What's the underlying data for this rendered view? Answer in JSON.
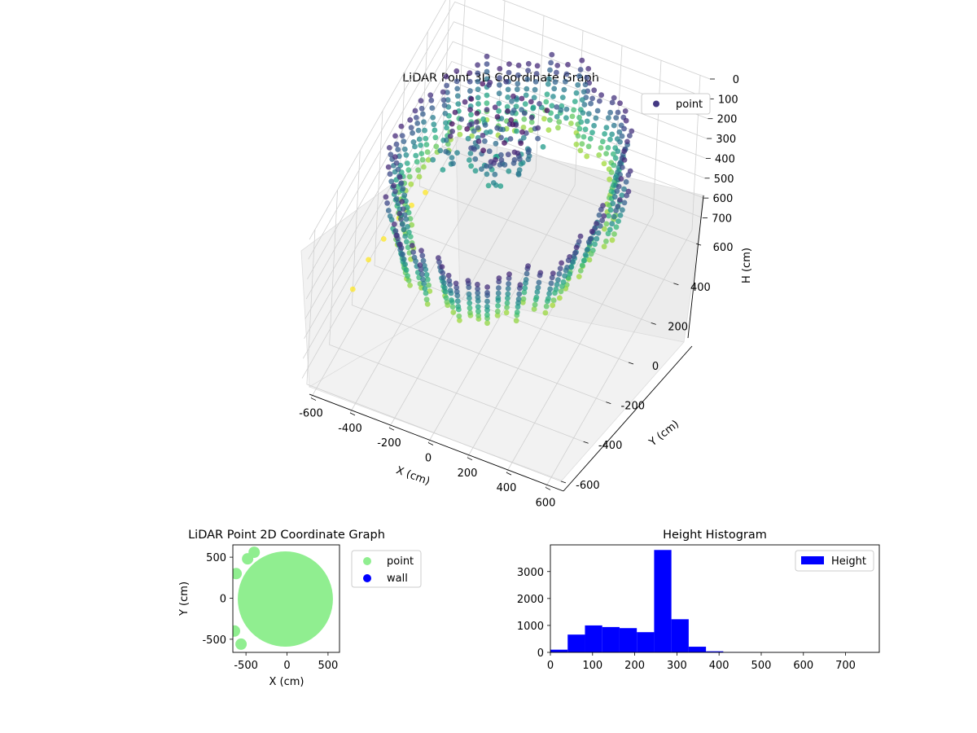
{
  "chart_data": [
    {
      "type": "scatter",
      "title": "LiDAR Point 3D Coordinate Graph",
      "projection": "3d",
      "xlabel": "X (cm)",
      "ylabel": "Y (cm)",
      "zlabel": "H (cm)",
      "xlim": [
        -650,
        650
      ],
      "ylim": [
        -650,
        650
      ],
      "zlim": [
        0,
        780
      ],
      "z_inverted": true,
      "xticks": [
        -600,
        -400,
        -200,
        0,
        200,
        400,
        600
      ],
      "yticks": [
        -600,
        -400,
        -200,
        0,
        200,
        400,
        600
      ],
      "zticks": [
        0,
        100,
        200,
        300,
        400,
        500,
        600,
        700
      ],
      "colormap": "viridis (by height)",
      "legend_position": "upper right",
      "series": [
        {
          "name": "point",
          "color": "#443983",
          "description_of_values": "ring of points around the sensor, radius approx 450-600 cm, heights mostly 60-300 cm, a few outliers to 700 cm near x=-650",
          "sample_points": [
            {
              "x": 600,
              "y": 0,
              "h": 250
            },
            {
              "x": 0,
              "y": 600,
              "h": 250
            },
            {
              "x": -450,
              "y": 300,
              "h": 150
            },
            {
              "x": -650,
              "y": -200,
              "h": 700
            },
            {
              "x": 300,
              "y": -500,
              "h": 150
            },
            {
              "x": 100,
              "y": -550,
              "h": 300
            },
            {
              "x": -100,
              "y": 200,
              "h": 30
            }
          ]
        }
      ]
    },
    {
      "type": "scatter",
      "title": "LiDAR Point 2D Coordinate Graph",
      "xlabel": "X (cm)",
      "ylabel": "Y (cm)",
      "xlim": [
        -660,
        640
      ],
      "ylim": [
        -660,
        650
      ],
      "xticks": [
        -500,
        0,
        500
      ],
      "yticks": [
        -500,
        0,
        500
      ],
      "legend_position": "outside right",
      "series": [
        {
          "name": "point",
          "color": "#90ee90",
          "description_of_values": "filled disc of radius approx 580 cm centered at origin"
        },
        {
          "name": "wall",
          "color": "#0000ff",
          "description_of_values": "no visible points"
        }
      ]
    },
    {
      "type": "bar",
      "subtype": "histogram",
      "title": "Height Histogram",
      "xlim": [
        0,
        780
      ],
      "ylim": [
        0,
        3990
      ],
      "xticks": [
        0,
        100,
        200,
        300,
        400,
        500,
        600,
        700
      ],
      "yticks": [
        0,
        1000,
        2000,
        3000
      ],
      "legend_position": "upper right",
      "series": [
        {
          "name": "Height",
          "color": "#0000ff",
          "bin_edges": [
            0,
            41,
            82,
            123,
            164,
            205,
            246,
            287,
            328,
            369,
            410,
            451,
            492,
            533,
            574,
            615,
            656,
            697,
            738,
            780
          ],
          "values": [
            100,
            660,
            1000,
            940,
            900,
            750,
            3800,
            1230,
            210,
            40,
            10,
            5,
            3,
            3,
            2,
            2,
            2,
            2,
            2
          ]
        }
      ]
    }
  ]
}
